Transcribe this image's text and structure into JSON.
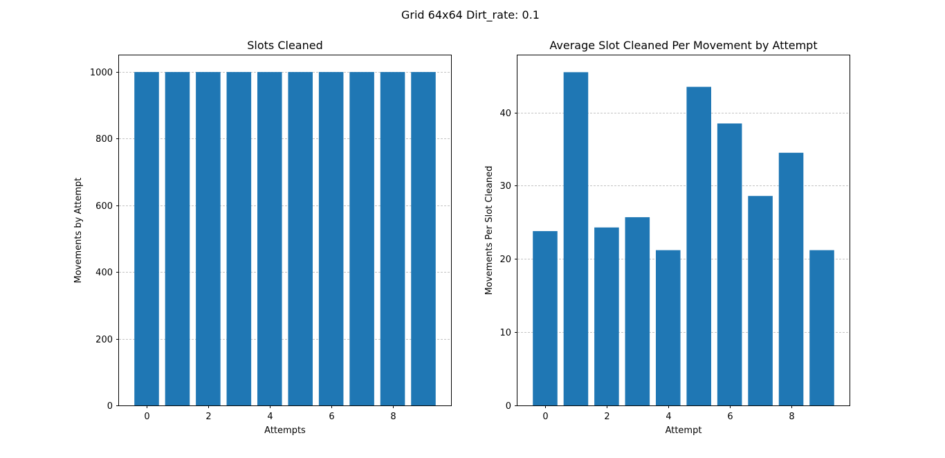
{
  "figure": {
    "suptitle": "Grid 64x64 Dirt_rate: 0.1",
    "bar_color": "#1f77b4",
    "grid_color": "#b0b0b0"
  },
  "chart_data": [
    {
      "type": "bar",
      "title": "Slots Cleaned",
      "xlabel": "Attempts",
      "ylabel": "Movements by Attempt",
      "categories": [
        0,
        1,
        2,
        3,
        4,
        5,
        6,
        7,
        8,
        9
      ],
      "values": [
        1000,
        1000,
        1000,
        1000,
        1000,
        1000,
        1000,
        1000,
        1000,
        1000
      ],
      "xlim": [
        -0.9,
        9.9
      ],
      "ylim": [
        0,
        1050
      ],
      "xticks": [
        0,
        2,
        4,
        6,
        8
      ],
      "yticks": [
        0,
        200,
        400,
        600,
        800,
        1000
      ],
      "grid": "y-dashed"
    },
    {
      "type": "bar",
      "title": "Average Slot Cleaned Per Movement by Attempt",
      "xlabel": "Attempt",
      "ylabel": "Movements Per Slot Cleaned",
      "categories": [
        0,
        1,
        2,
        3,
        4,
        5,
        6,
        7,
        8,
        9
      ],
      "values": [
        23.8,
        45.5,
        24.3,
        25.7,
        21.2,
        43.5,
        38.5,
        28.6,
        34.5,
        21.2
      ],
      "xlim": [
        -0.9,
        9.9
      ],
      "ylim": [
        0,
        47.8
      ],
      "xticks": [
        0,
        2,
        4,
        6,
        8
      ],
      "yticks": [
        0,
        10,
        20,
        30,
        40
      ],
      "grid": "y-dashed"
    }
  ]
}
